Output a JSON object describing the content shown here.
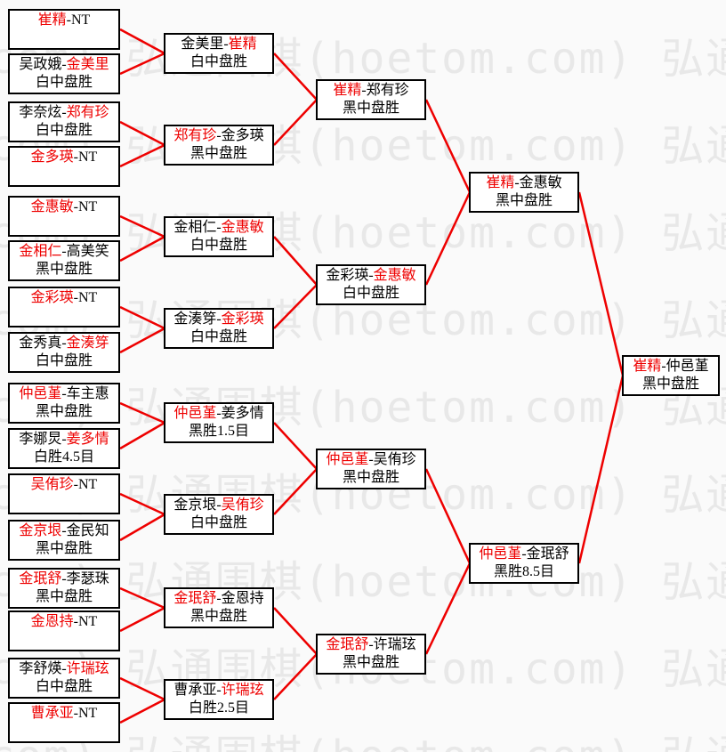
{
  "watermark": {
    "text": "弘通围棋(hoetom.com)",
    "color": "#e8e8e8"
  },
  "colors": {
    "winner_red": "#ee0000",
    "connector_red": "#ee0000",
    "box_border": "#000000",
    "box_background": "#ffffff",
    "page_background": "#fafafa",
    "text_black": "#000000"
  },
  "separator": "-",
  "bracket": {
    "rounds": [
      {
        "name": "round-1",
        "matches": [
          {
            "p1": "崔精",
            "p2": "NT",
            "winner": "p1",
            "result": ""
          },
          {
            "p1": "吴政娥",
            "p2": "金美里",
            "winner": "p2",
            "result": "白中盘胜"
          },
          {
            "p1": "李奈炫",
            "p2": "郑有珍",
            "winner": "p2",
            "result": "白中盘胜"
          },
          {
            "p1": "金多瑛",
            "p2": "NT",
            "winner": "p1",
            "result": ""
          },
          {
            "p1": "金惠敏",
            "p2": "NT",
            "winner": "p1",
            "result": ""
          },
          {
            "p1": "金相仁",
            "p2": "高美笑",
            "winner": "p1",
            "result": "黑中盘胜"
          },
          {
            "p1": "金彩瑛",
            "p2": "NT",
            "winner": "p1",
            "result": ""
          },
          {
            "p1": "金秀真",
            "p2": "金湊笌",
            "winner": "p2",
            "result": "白中盘胜"
          },
          {
            "p1": "仲邑堇",
            "p2": "车主惠",
            "winner": "p1",
            "result": "黑中盘胜"
          },
          {
            "p1": "李娜炅",
            "p2": "姜多情",
            "winner": "p2",
            "result": "白胜4.5目"
          },
          {
            "p1": "吴侑珍",
            "p2": "NT",
            "winner": "p1",
            "result": ""
          },
          {
            "p1": "金京垠",
            "p2": "金民知",
            "winner": "p1",
            "result": "黑中盘胜"
          },
          {
            "p1": "金珉舒",
            "p2": "李瑟珠",
            "winner": "p1",
            "result": "黑中盘胜"
          },
          {
            "p1": "金恩持",
            "p2": "NT",
            "winner": "p1",
            "result": ""
          },
          {
            "p1": "李舒煐",
            "p2": "许瑞玹",
            "winner": "p2",
            "result": "白中盘胜"
          },
          {
            "p1": "曹承亚",
            "p2": "NT",
            "winner": "p1",
            "result": ""
          }
        ]
      },
      {
        "name": "round-2",
        "matches": [
          {
            "p1": "金美里",
            "p2": "崔精",
            "winner": "p2",
            "result": "白中盘胜"
          },
          {
            "p1": "郑有珍",
            "p2": "金多瑛",
            "winner": "p1",
            "result": "黑中盘胜"
          },
          {
            "p1": "金相仁",
            "p2": "金惠敏",
            "winner": "p2",
            "result": "白中盘胜"
          },
          {
            "p1": "金湊笌",
            "p2": "金彩瑛",
            "winner": "p2",
            "result": "白中盘胜"
          },
          {
            "p1": "仲邑堇",
            "p2": "姜多情",
            "winner": "p1",
            "result": "黑胜1.5目"
          },
          {
            "p1": "金京垠",
            "p2": "吴侑珍",
            "winner": "p2",
            "result": "白中盘胜"
          },
          {
            "p1": "金珉舒",
            "p2": "金恩持",
            "winner": "p1",
            "result": "黑中盘胜"
          },
          {
            "p1": "曹承亚",
            "p2": "许瑞玹",
            "winner": "p2",
            "result": "白胜2.5目"
          }
        ]
      },
      {
        "name": "quarterfinals",
        "matches": [
          {
            "p1": "崔精",
            "p2": "郑有珍",
            "winner": "p1",
            "result": "黑中盘胜"
          },
          {
            "p1": "金彩瑛",
            "p2": "金惠敏",
            "winner": "p2",
            "result": "白中盘胜"
          },
          {
            "p1": "仲邑堇",
            "p2": "吴侑珍",
            "winner": "p1",
            "result": "黑中盘胜"
          },
          {
            "p1": "金珉舒",
            "p2": "许瑞玹",
            "winner": "p1",
            "result": "黑中盘胜"
          }
        ]
      },
      {
        "name": "semifinals",
        "matches": [
          {
            "p1": "崔精",
            "p2": "金惠敏",
            "winner": "p1",
            "result": "黑中盘胜"
          },
          {
            "p1": "仲邑堇",
            "p2": "金珉舒",
            "winner": "p1",
            "result": "黑胜8.5目"
          }
        ]
      },
      {
        "name": "final",
        "matches": [
          {
            "p1": "崔精",
            "p2": "仲邑堇",
            "winner": "p1",
            "result": "黑中盘胜"
          }
        ]
      }
    ]
  }
}
